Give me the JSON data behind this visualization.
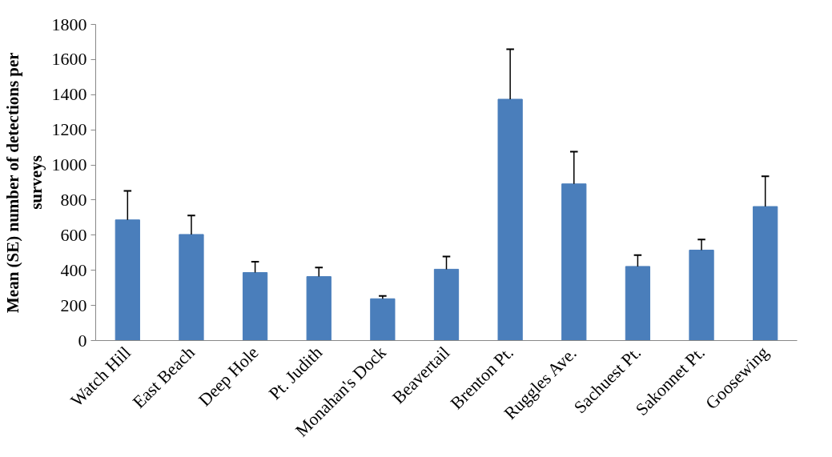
{
  "chart_data": {
    "type": "bar",
    "ylabel": "Mean (SE) number of detections per surveys",
    "categories": [
      "Watch Hill",
      "East Beach",
      "Deep Hole",
      "Pt. Judith",
      "Monahan's Dock",
      "Beavertail",
      "Brenton Pt.",
      "Ruggles Ave.",
      "Sachuest Pt.",
      "Sakonnet Pt.",
      "Goosewing"
    ],
    "values": [
      687,
      604,
      387,
      364,
      238,
      406,
      1374,
      892,
      422,
      515,
      763
    ],
    "errors": [
      [
        687,
        852
      ],
      [
        604,
        712
      ],
      [
        387,
        449
      ],
      [
        364,
        416
      ],
      [
        238,
        254
      ],
      [
        406,
        478
      ],
      [
        1374,
        1659
      ],
      [
        892,
        1076
      ],
      [
        422,
        486
      ],
      [
        515,
        575
      ],
      [
        763,
        935
      ]
    ],
    "color": "#4a7ebb",
    "ylim": [
      0,
      1800
    ],
    "yticks": [
      0,
      200,
      400,
      600,
      800,
      1000,
      1200,
      1400,
      1600,
      1800
    ],
    "grid": false
  }
}
